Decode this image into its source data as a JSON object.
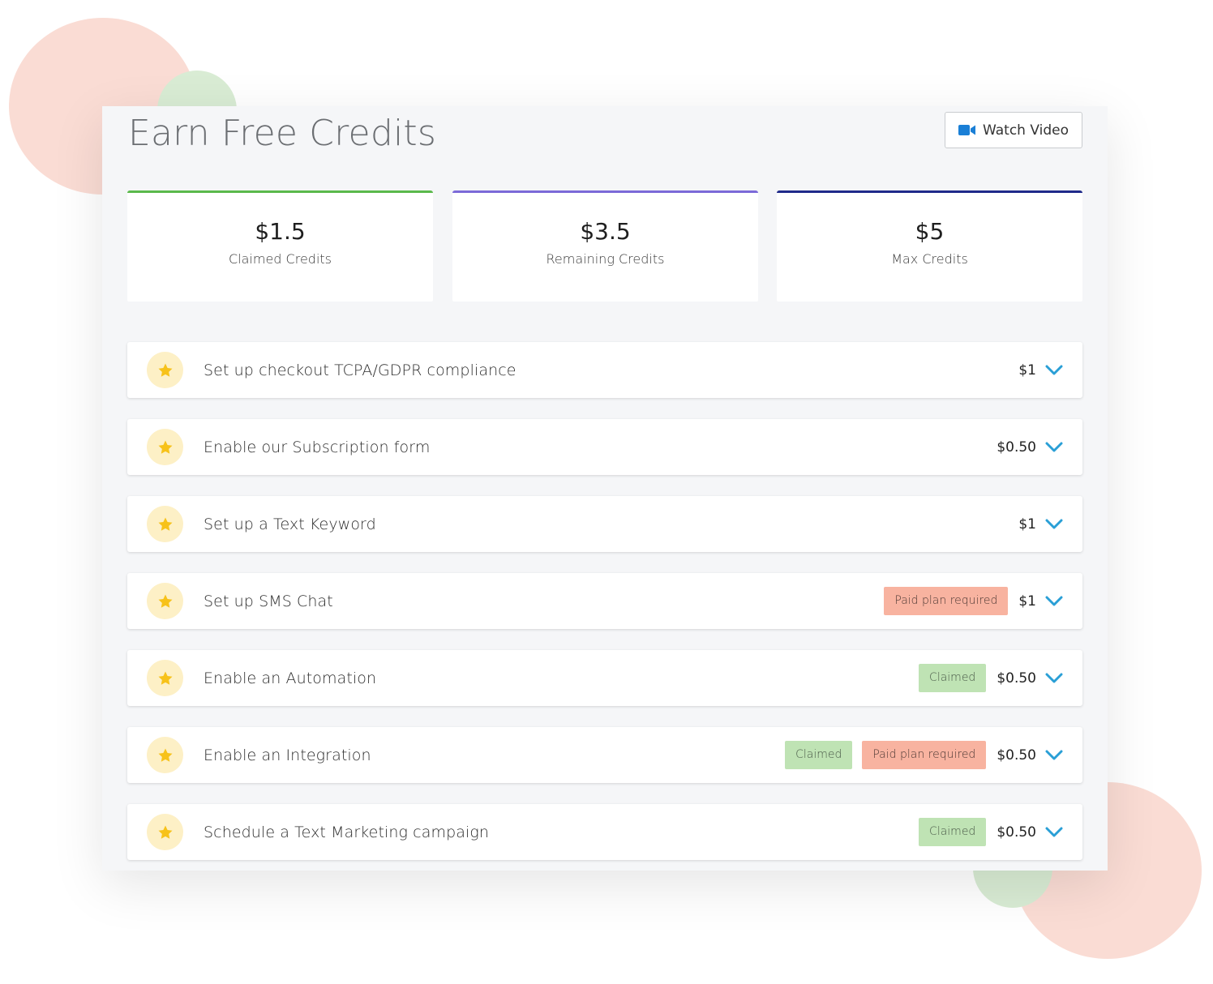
{
  "header": {
    "title": "Earn Free Credits",
    "watch_video_label": "Watch Video",
    "watch_video_icon": "video-camera-icon"
  },
  "stats": {
    "claimed": {
      "value": "$1.5",
      "label": "Claimed Credits",
      "accent": "#5bb94c"
    },
    "remaining": {
      "value": "$3.5",
      "label": "Remaining Credits",
      "accent": "#7b6ad8"
    },
    "max": {
      "value": "$5",
      "label": "Max Credits",
      "accent": "#1f2a8a"
    }
  },
  "tasks": [
    {
      "title": "Set up checkout TCPA/GDPR compliance",
      "amount": "$1"
    },
    {
      "title": "Enable our Subscription form",
      "amount": "$0.50"
    },
    {
      "title": "Set up a Text Keyword",
      "amount": "$1"
    },
    {
      "title": "Set up SMS Chat",
      "amount": "$1",
      "paid_tag": "Paid plan required"
    },
    {
      "title": "Enable an Automation",
      "amount": "$0.50",
      "claimed_tag": "Claimed"
    },
    {
      "title": "Enable an Integration",
      "amount": "$0.50",
      "claimed_tag": "Claimed",
      "paid_tag": "Paid plan required"
    },
    {
      "title": "Schedule a Text Marketing campaign",
      "amount": "$0.50",
      "claimed_tag": "Claimed"
    }
  ],
  "colors": {
    "star": "#f7c21a",
    "star_bg": "#fdf0c6",
    "chevron": "#2a9fd6",
    "claimed_tag_bg": "#bfe3b4",
    "paid_tag_bg": "#f8b3a0",
    "video_icon": "#1a7fd6"
  }
}
